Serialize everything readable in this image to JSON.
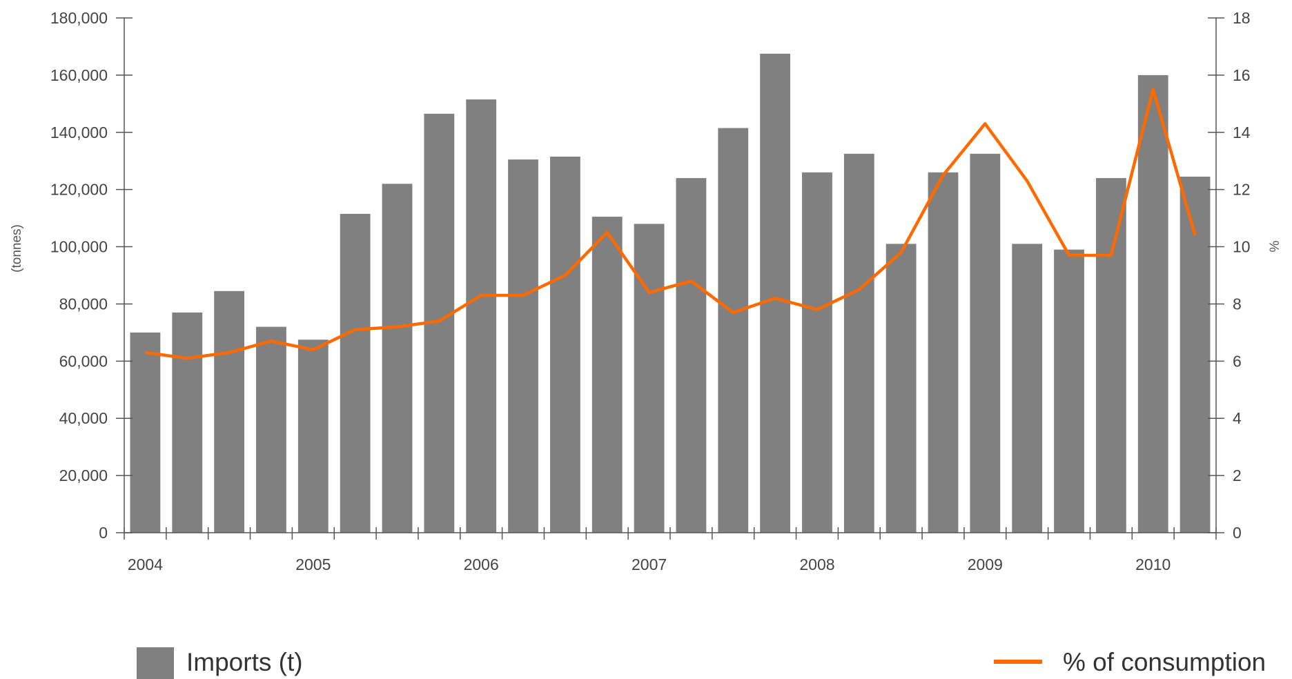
{
  "colors": {
    "bars": "#808080",
    "line": "#FF6A00",
    "axis": "#555555",
    "text": "#444444"
  },
  "chart_data": {
    "type": "bar",
    "grid": false,
    "legend_position": "bottom",
    "x_axis": {
      "year_labels": [
        "2004",
        "2005",
        "2006",
        "2007",
        "2008",
        "2009",
        "2010"
      ]
    },
    "y_left": {
      "label": "(tonnes)",
      "range": [
        0,
        180000
      ],
      "ticks": [
        "0",
        "20,000",
        "40,000",
        "60,000",
        "80,000",
        "100,000",
        "120,000",
        "140,000",
        "160,000",
        "180,000"
      ]
    },
    "y_right": {
      "label": "%",
      "range": [
        0,
        18
      ],
      "ticks": [
        "0",
        "2",
        "4",
        "6",
        "8",
        "10",
        "12",
        "14",
        "16",
        "18"
      ]
    },
    "series": [
      {
        "name": "Imports (t)",
        "type": "bar",
        "axis": "left",
        "values": [
          70000,
          77000,
          84500,
          72000,
          67500,
          111500,
          122000,
          146500,
          151500,
          130500,
          131500,
          110500,
          108000,
          124000,
          141500,
          167500,
          126000,
          132500,
          101000,
          126000,
          132500,
          101000,
          99000,
          124000,
          160000,
          124500
        ]
      },
      {
        "name": "% of consumption",
        "type": "line",
        "axis": "right",
        "values": [
          6.3,
          6.1,
          6.3,
          6.7,
          6.4,
          7.1,
          7.2,
          7.4,
          8.3,
          8.3,
          9.0,
          10.5,
          8.4,
          8.8,
          7.7,
          8.2,
          7.8,
          8.5,
          9.8,
          12.5,
          14.3,
          12.3,
          9.7,
          9.7,
          15.5,
          10.4
        ]
      }
    ]
  }
}
